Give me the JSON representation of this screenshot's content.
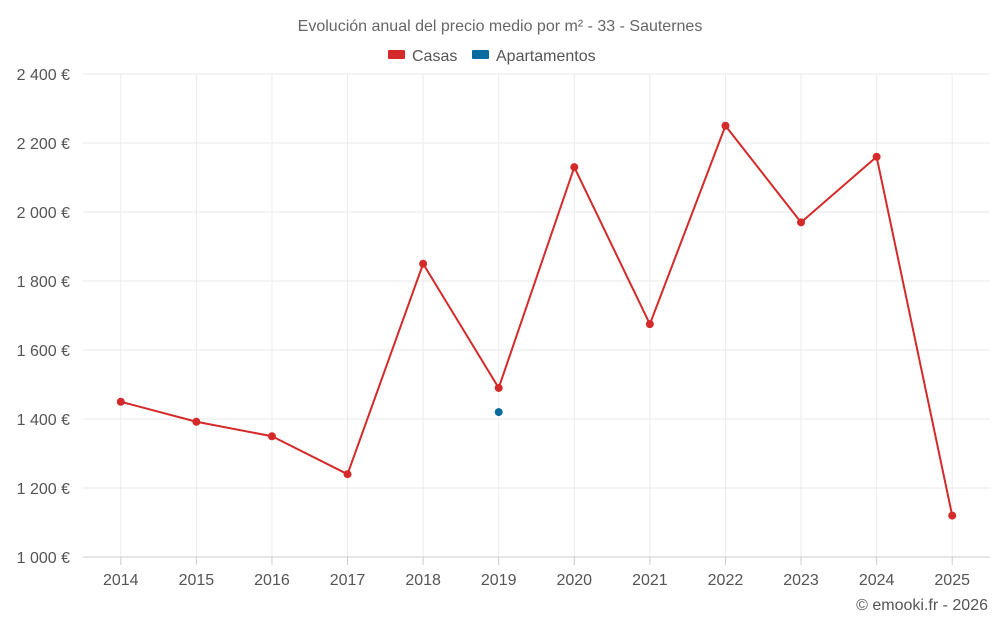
{
  "chart_data": {
    "type": "line",
    "title": "Evolución anual del precio medio por m² - 33 - Sauternes",
    "categories": [
      "2014",
      "2015",
      "2016",
      "2017",
      "2018",
      "2019",
      "2020",
      "2021",
      "2022",
      "2023",
      "2024",
      "2025"
    ],
    "series": [
      {
        "name": "Casas",
        "color": "#d42a2a",
        "values": [
          1450,
          1392,
          1350,
          1240,
          1850,
          1490,
          2130,
          1675,
          2250,
          1970,
          2160,
          1120
        ]
      },
      {
        "name": "Apartamentos",
        "color": "#0b6a9e",
        "values": [
          null,
          null,
          null,
          null,
          null,
          1420,
          null,
          null,
          null,
          null,
          null,
          null
        ]
      }
    ],
    "ylim": [
      1000,
      2400
    ],
    "yticks": [
      1000,
      1200,
      1400,
      1600,
      1800,
      2000,
      2200,
      2400
    ],
    "ytick_labels": [
      "1 000 €",
      "1 200 €",
      "1 400 €",
      "1 600 €",
      "1 800 €",
      "2 000 €",
      "2 200 €",
      "2 400 €"
    ],
    "xlabel": "",
    "ylabel": "",
    "grid": true,
    "legend": "top-center"
  },
  "credit": "© emooki.fr - 2026"
}
